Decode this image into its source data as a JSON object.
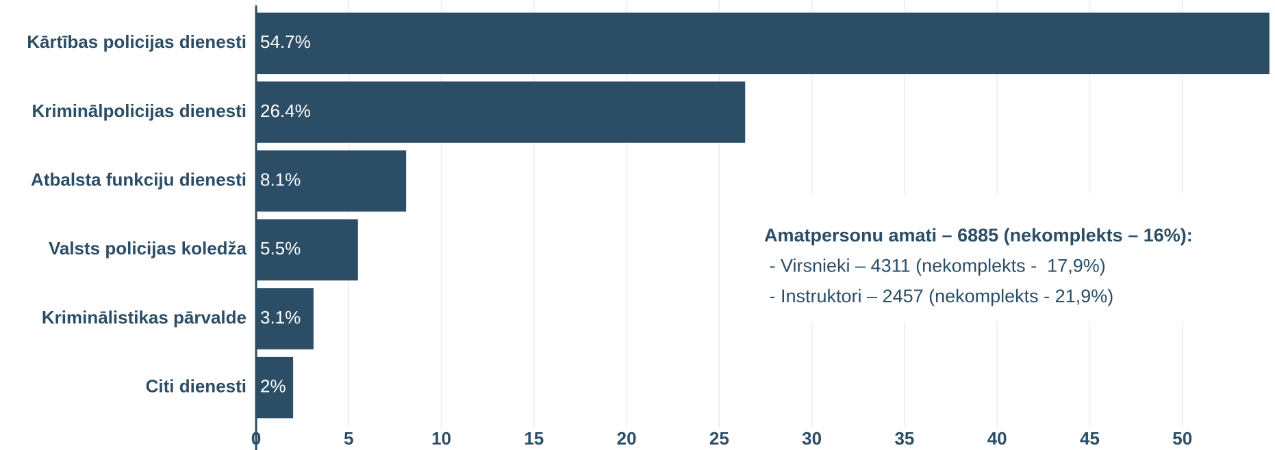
{
  "chart_data": {
    "type": "bar",
    "orientation": "horizontal",
    "categories": [
      "Kārtības policijas dienesti",
      "Kriminālpolicijas dienesti",
      "Atbalsta funkciju dienesti",
      "Valsts policijas koledža",
      "Kriminālistikas pārvalde",
      "Citi dienesti"
    ],
    "values": [
      54.7,
      26.4,
      8.1,
      5.5,
      3.1,
      2
    ],
    "value_labels": [
      "54.7%",
      "26.4%",
      "8.1%",
      "5.5%",
      "3.1%",
      "2%"
    ],
    "color": "#2b4e66",
    "xlim": [
      0,
      55
    ],
    "xticks": [
      0,
      5,
      10,
      15,
      20,
      25,
      30,
      35,
      40,
      45,
      50
    ],
    "grid": true,
    "annotation": [
      "Amatpersonu amati – 6885 (nekomplekts – 16%):",
      " - Virsnieki – 4311 (nekomplekts -  17,9%)",
      " - Instruktori – 2457 (nekomplekts - 21,9%)"
    ]
  }
}
